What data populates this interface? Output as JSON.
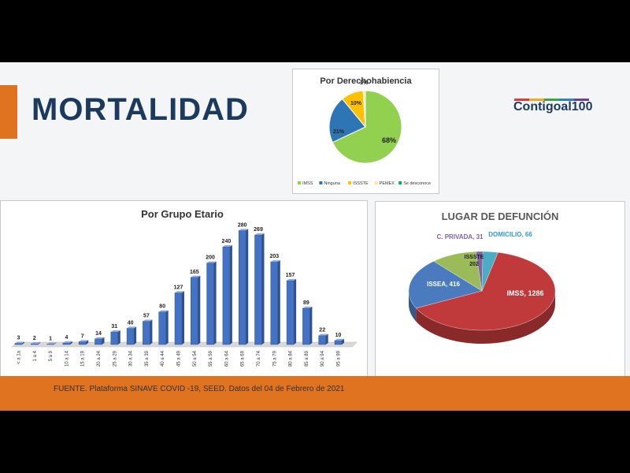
{
  "header": {
    "title": "MORTALIDAD",
    "brand_main": "Contigo",
    "brand_sub": "al100"
  },
  "footer": {
    "source": "FUENTE. Plataforma SINAVE COVID -19, SEED. Datos del 04 de Febrero de 2021"
  },
  "chart_data": [
    {
      "type": "pie",
      "title": "Por Derechohabiencia",
      "labels": [
        "IMSS",
        "Ninguna",
        "ISSSTE",
        "PEMEX",
        "Se desconoce"
      ],
      "values": [
        68,
        21,
        10,
        1,
        0
      ],
      "data_labels": [
        "68%",
        "21%",
        "10%",
        "1%",
        ""
      ],
      "colors": [
        "#92d050",
        "#2e75b6",
        "#ffc000",
        "#ffe699",
        "#00b050"
      ],
      "legend": "bottom"
    },
    {
      "type": "bar",
      "title": "Por Grupo Etario",
      "categories": [
        "< a 1a",
        "1 a 4",
        "5 a 9",
        "10 a 14",
        "15 a 19",
        "20 a 24",
        "25 a 29",
        "30 a 34",
        "35 a 39",
        "40 a 44",
        "45 a 49",
        "50 a 54",
        "55 a 59",
        "60 a 64",
        "65 a 69",
        "70 a 74",
        "75 a 79",
        "80 a 84",
        "85 a 89",
        "90 a 94",
        "95 a 99"
      ],
      "values": [
        3,
        2,
        1,
        4,
        7,
        14,
        31,
        40,
        57,
        80,
        127,
        165,
        200,
        240,
        280,
        269,
        203,
        157,
        89,
        22,
        10
      ],
      "color": "#4472c4",
      "ylim": [
        0,
        300
      ],
      "grid": false
    },
    {
      "type": "pie",
      "title": "LUGAR DE DEFUNCIÓN",
      "labels": [
        "IMSS",
        "ISSEA",
        "ISSSTE",
        "C. PRIVADA",
        "DOMICILIO"
      ],
      "values": [
        1286,
        416,
        202,
        31,
        66
      ],
      "data_labels": [
        "IMSS, 1286",
        "ISSEA, 416",
        "ISSSTE 202",
        "C. PRIVADA, 31",
        "DOMICILIO, 66"
      ],
      "colors": [
        "#c0393b",
        "#4a7bbf",
        "#9bbb59",
        "#8064a2",
        "#4bacc6"
      ],
      "label_colors": [
        "#ffffff",
        "#ffffff",
        "#1a1a1a",
        "#7f5fa6",
        "#2e9bc6"
      ],
      "style": "3d"
    }
  ]
}
